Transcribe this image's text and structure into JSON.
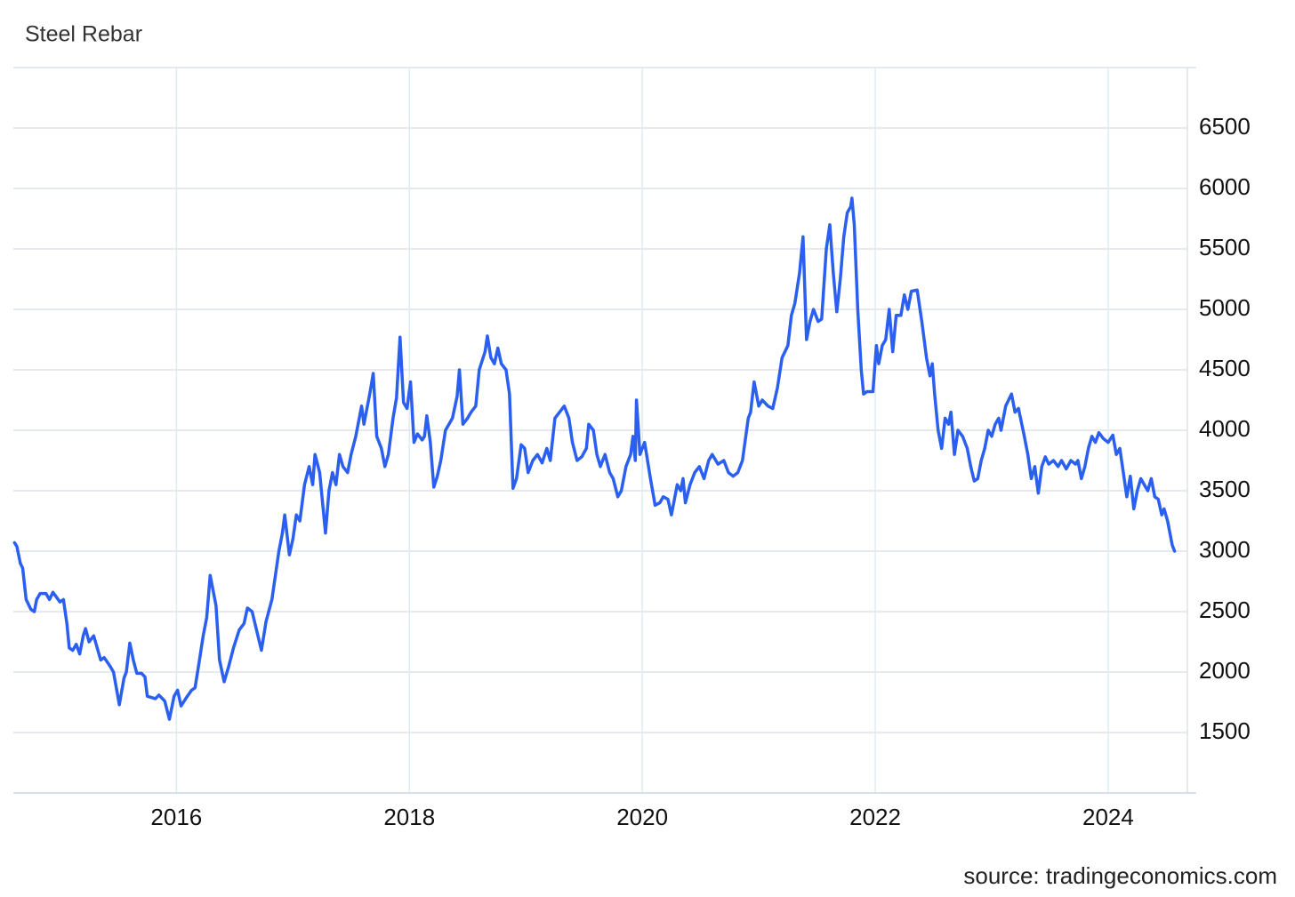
{
  "chart_data": {
    "type": "line",
    "title": "Steel Rebar",
    "source": "source: tradingeconomics.com",
    "color": "#2a5ff0",
    "grid": true,
    "x": [
      2014.61,
      2014.63,
      2014.66,
      2014.68,
      2014.71,
      2014.75,
      2014.78,
      2014.8,
      2014.83,
      2014.88,
      2014.91,
      2014.94,
      2014.97,
      2015.0,
      2015.03,
      2015.06,
      2015.08,
      2015.11,
      2015.14,
      2015.17,
      2015.2,
      2015.22,
      2015.25,
      2015.29,
      2015.32,
      2015.35,
      2015.38,
      2015.43,
      2015.46,
      2015.51,
      2015.55,
      2015.57,
      2015.6,
      2015.63,
      2015.66,
      2015.7,
      2015.73,
      2015.75,
      2015.82,
      2015.85,
      2015.9,
      2015.94,
      2015.98,
      2016.01,
      2016.04,
      2016.08,
      2016.13,
      2016.16,
      2016.19,
      2016.23,
      2016.26,
      2016.29,
      2016.32,
      2016.34,
      2016.37,
      2016.41,
      2016.45,
      2016.49,
      2016.54,
      2016.58,
      2016.61,
      2016.65,
      2016.7,
      2016.73,
      2016.77,
      2016.82,
      2016.85,
      2016.88,
      2016.91,
      2016.93,
      2016.97,
      2017.0,
      2017.03,
      2017.06,
      2017.1,
      2017.14,
      2017.17,
      2017.19,
      2017.23,
      2017.28,
      2017.31,
      2017.34,
      2017.37,
      2017.4,
      2017.43,
      2017.47,
      2017.5,
      2017.54,
      2017.59,
      2017.61,
      2017.66,
      2017.69,
      2017.72,
      2017.76,
      2017.79,
      2017.82,
      2017.86,
      2017.89,
      2017.92,
      2017.95,
      2017.98,
      2018.01,
      2018.04,
      2018.07,
      2018.11,
      2018.13,
      2018.15,
      2018.18,
      2018.21,
      2018.24,
      2018.27,
      2018.31,
      2018.34,
      2018.37,
      2018.41,
      2018.43,
      2018.46,
      2018.5,
      2018.53,
      2018.57,
      2018.6,
      2018.65,
      2018.67,
      2018.7,
      2018.73,
      2018.76,
      2018.79,
      2018.83,
      2018.86,
      2018.89,
      2018.92,
      2018.96,
      2018.99,
      2019.02,
      2019.06,
      2019.1,
      2019.14,
      2019.18,
      2019.21,
      2019.25,
      2019.29,
      2019.33,
      2019.37,
      2019.4,
      2019.44,
      2019.48,
      2019.52,
      2019.54,
      2019.58,
      2019.61,
      2019.64,
      2019.68,
      2019.72,
      2019.75,
      2019.79,
      2019.82,
      2019.86,
      2019.9,
      2019.92,
      2019.94,
      2019.95,
      2019.98,
      2020.02,
      2020.07,
      2020.11,
      2020.15,
      2020.18,
      2020.22,
      2020.25,
      2020.3,
      2020.33,
      2020.35,
      2020.37,
      2020.41,
      2020.45,
      2020.49,
      2020.53,
      2020.57,
      2020.6,
      2020.65,
      2020.7,
      2020.74,
      2020.78,
      2020.82,
      2020.86,
      2020.91,
      2020.93,
      2020.96,
      2021.0,
      2021.03,
      2021.08,
      2021.12,
      2021.16,
      2021.2,
      2021.25,
      2021.28,
      2021.31,
      2021.35,
      2021.38,
      2021.41,
      2021.44,
      2021.47,
      2021.51,
      2021.54,
      2021.58,
      2021.61,
      2021.64,
      2021.67,
      2021.7,
      2021.73,
      2021.76,
      2021.79,
      2021.8,
      2021.82,
      2021.85,
      2021.88,
      2021.9,
      2021.93,
      2021.98,
      2022.01,
      2022.03,
      2022.06,
      2022.09,
      2022.12,
      2022.15,
      2022.18,
      2022.22,
      2022.25,
      2022.28,
      2022.31,
      2022.36,
      2022.4,
      2022.44,
      2022.47,
      2022.49,
      2022.51,
      2022.54,
      2022.57,
      2022.6,
      2022.63,
      2022.65,
      2022.68,
      2022.71,
      2022.75,
      2022.79,
      2022.82,
      2022.85,
      2022.88,
      2022.91,
      2022.94,
      2022.97,
      2023.0,
      2023.03,
      2023.06,
      2023.08,
      2023.12,
      2023.17,
      2023.2,
      2023.23,
      2023.28,
      2023.31,
      2023.34,
      2023.37,
      2023.4,
      2023.43,
      2023.46,
      2023.49,
      2023.53,
      2023.57,
      2023.6,
      2023.64,
      2023.68,
      2023.72,
      2023.74,
      2023.77,
      2023.8,
      2023.83,
      2023.86,
      2023.89,
      2023.92,
      2023.96,
      2024.0,
      2024.04,
      2024.07,
      2024.1,
      2024.13,
      2024.16,
      2024.19,
      2024.22,
      2024.25,
      2024.28,
      2024.31,
      2024.34,
      2024.37,
      2024.4,
      2024.43,
      2024.46,
      2024.48,
      2024.51,
      2024.55,
      2024.57
    ],
    "values": [
      3070,
      3040,
      2900,
      2860,
      2600,
      2520,
      2500,
      2600,
      2650,
      2650,
      2600,
      2660,
      2620,
      2580,
      2600,
      2400,
      2200,
      2180,
      2230,
      2150,
      2300,
      2360,
      2250,
      2300,
      2200,
      2100,
      2120,
      2050,
      2000,
      1730,
      1950,
      2000,
      2240,
      2100,
      1990,
      1990,
      1960,
      1800,
      1780,
      1810,
      1760,
      1610,
      1800,
      1850,
      1720,
      1780,
      1850,
      1870,
      2050,
      2300,
      2450,
      2800,
      2650,
      2550,
      2100,
      1920,
      2050,
      2200,
      2350,
      2400,
      2530,
      2500,
      2300,
      2180,
      2420,
      2600,
      2800,
      3000,
      3150,
      3300,
      2970,
      3100,
      3300,
      3250,
      3550,
      3700,
      3550,
      3800,
      3650,
      3150,
      3500,
      3650,
      3550,
      3800,
      3700,
      3650,
      3800,
      3950,
      4200,
      4050,
      4300,
      4470,
      3950,
      3850,
      3700,
      3800,
      4100,
      4270,
      4770,
      4230,
      4180,
      4400,
      3900,
      3970,
      3920,
      3950,
      4120,
      3900,
      3530,
      3620,
      3750,
      4000,
      4050,
      4100,
      4280,
      4500,
      4050,
      4100,
      4150,
      4200,
      4500,
      4650,
      4780,
      4600,
      4550,
      4680,
      4550,
      4500,
      4300,
      3520,
      3600,
      3880,
      3850,
      3650,
      3750,
      3800,
      3730,
      3850,
      3750,
      4100,
      4150,
      4200,
      4100,
      3900,
      3750,
      3780,
      3850,
      4050,
      4000,
      3800,
      3700,
      3800,
      3650,
      3600,
      3450,
      3500,
      3700,
      3800,
      3950,
      3750,
      4250,
      3800,
      3900,
      3600,
      3380,
      3400,
      3450,
      3430,
      3300,
      3550,
      3500,
      3600,
      3400,
      3550,
      3650,
      3700,
      3600,
      3750,
      3800,
      3720,
      3750,
      3650,
      3620,
      3650,
      3750,
      4100,
      4150,
      4400,
      4200,
      4250,
      4200,
      4180,
      4350,
      4600,
      4700,
      4950,
      5050,
      5300,
      5600,
      4750,
      4900,
      5000,
      4900,
      4920,
      5500,
      5700,
      5300,
      4980,
      5250,
      5600,
      5800,
      5850,
      5920,
      5700,
      5000,
      4500,
      4300,
      4320,
      4320,
      4700,
      4550,
      4700,
      4750,
      5000,
      4650,
      4950,
      4950,
      5120,
      5000,
      5150,
      5160,
      4900,
      4600,
      4450,
      4550,
      4300,
      4000,
      3850,
      4100,
      4050,
      4150,
      3800,
      4000,
      3950,
      3850,
      3700,
      3580,
      3600,
      3750,
      3850,
      4000,
      3950,
      4050,
      4100,
      4000,
      4200,
      4300,
      4150,
      4180,
      3950,
      3800,
      3600,
      3700,
      3480,
      3700,
      3780,
      3720,
      3750,
      3700,
      3750,
      3680,
      3750,
      3720,
      3750,
      3600,
      3700,
      3850,
      3950,
      3900,
      3980,
      3930,
      3900,
      3960,
      3800,
      3850,
      3650,
      3450,
      3620,
      3350,
      3500,
      3600,
      3550,
      3500,
      3600,
      3450,
      3430,
      3300,
      3350,
      3250,
      3050,
      3000
    ],
    "xlim": [
      2014.6,
      2024.68
    ],
    "xticks": [
      2016,
      2018,
      2020,
      2022,
      2024
    ],
    "ylim": [
      1000,
      7000
    ],
    "yticks": [
      1500,
      2000,
      2500,
      3000,
      3500,
      4000,
      4500,
      5000,
      5500,
      6000,
      6500
    ]
  }
}
